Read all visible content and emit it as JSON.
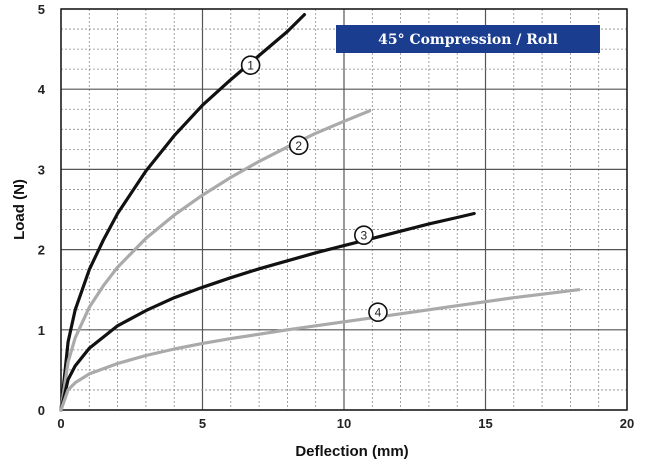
{
  "chart_data": {
    "type": "line",
    "title": "45° Compression / Roll",
    "xlabel": "Deflection (mm)",
    "ylabel": "Load (N)",
    "xlim": [
      0,
      20
    ],
    "ylim": [
      0,
      5
    ],
    "xticks": [
      "0",
      "5",
      "10",
      "15",
      "20"
    ],
    "yticks": [
      "0",
      "1",
      "2",
      "3",
      "4",
      "5"
    ],
    "grid": true,
    "series": [
      {
        "name": "1",
        "color": "#111111",
        "x": [
          0,
          0.25,
          0.5,
          1,
          1.5,
          2,
          3,
          4,
          5,
          6,
          7,
          8,
          8.6
        ],
        "y": [
          0,
          0.85,
          1.25,
          1.75,
          2.12,
          2.45,
          2.98,
          3.42,
          3.8,
          4.12,
          4.42,
          4.72,
          4.93
        ]
      },
      {
        "name": "2",
        "color": "#aaaaaa",
        "x": [
          0,
          0.25,
          0.5,
          1,
          1.5,
          2,
          3,
          4,
          5,
          6,
          7,
          8,
          9,
          10,
          10.9
        ],
        "y": [
          0,
          0.6,
          0.9,
          1.28,
          1.55,
          1.78,
          2.14,
          2.43,
          2.68,
          2.9,
          3.1,
          3.28,
          3.45,
          3.6,
          3.73
        ]
      },
      {
        "name": "3",
        "color": "#111111",
        "x": [
          0,
          0.25,
          0.5,
          1,
          2,
          3,
          4,
          5,
          6,
          7,
          8,
          9,
          10,
          11,
          12,
          13,
          14,
          14.6
        ],
        "y": [
          0,
          0.38,
          0.55,
          0.77,
          1.05,
          1.24,
          1.4,
          1.53,
          1.65,
          1.76,
          1.86,
          1.96,
          2.05,
          2.14,
          2.23,
          2.32,
          2.4,
          2.45
        ]
      },
      {
        "name": "4",
        "color": "#aaaaaa",
        "x": [
          0,
          0.25,
          0.5,
          1,
          2,
          3,
          4,
          5,
          6,
          8,
          10,
          12,
          14,
          16,
          18.3
        ],
        "y": [
          0,
          0.25,
          0.34,
          0.45,
          0.58,
          0.68,
          0.76,
          0.83,
          0.89,
          1.0,
          1.1,
          1.2,
          1.3,
          1.4,
          1.5
        ]
      }
    ],
    "curve_labels": [
      {
        "text": "1",
        "x": 6.7,
        "y": 4.3
      },
      {
        "text": "2",
        "x": 8.4,
        "y": 3.3
      },
      {
        "text": "3",
        "x": 10.7,
        "y": 2.18
      },
      {
        "text": "4",
        "x": 11.2,
        "y": 1.22
      }
    ],
    "title_box": {
      "fill": "#1a3d8f"
    }
  }
}
